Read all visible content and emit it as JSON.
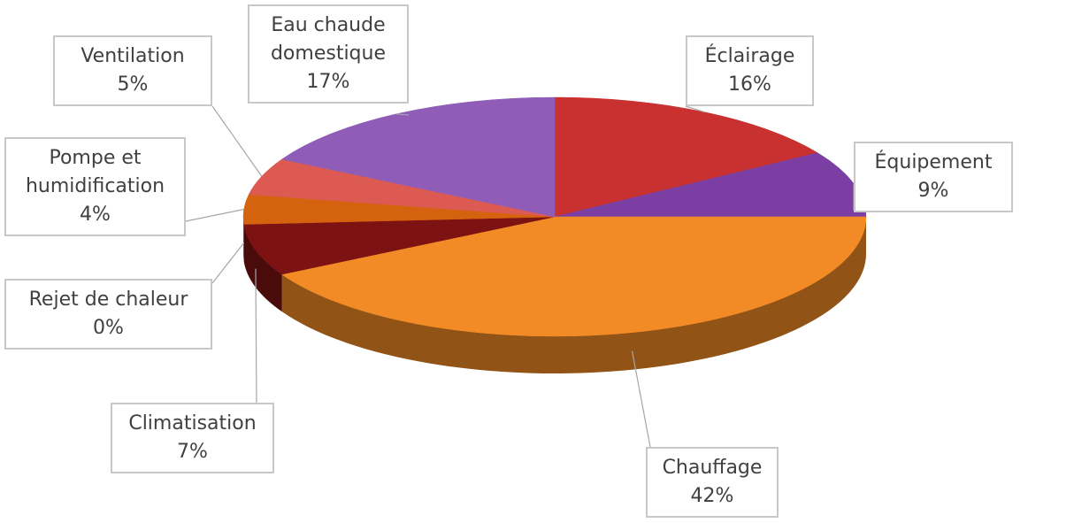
{
  "chart_data": {
    "type": "pie",
    "categories": [
      "Éclairage",
      "Équipement",
      "Chauffage",
      "Climatisation",
      "Rejet de chaleur",
      "Pompe et humidification",
      "Ventilation",
      "Eau chaude domestique"
    ],
    "values": [
      16,
      9,
      42,
      7,
      0,
      4,
      5,
      17
    ],
    "value_labels": [
      "16%",
      "9%",
      "42%",
      "7%",
      "0%",
      "4%",
      "5%",
      "17%"
    ],
    "colors": [
      "#c8312f",
      "#7b3fa3",
      "#f28a25",
      "#7c1212",
      "#a02a20",
      "#d4620f",
      "#dc5a52",
      "#8f5db8"
    ]
  }
}
